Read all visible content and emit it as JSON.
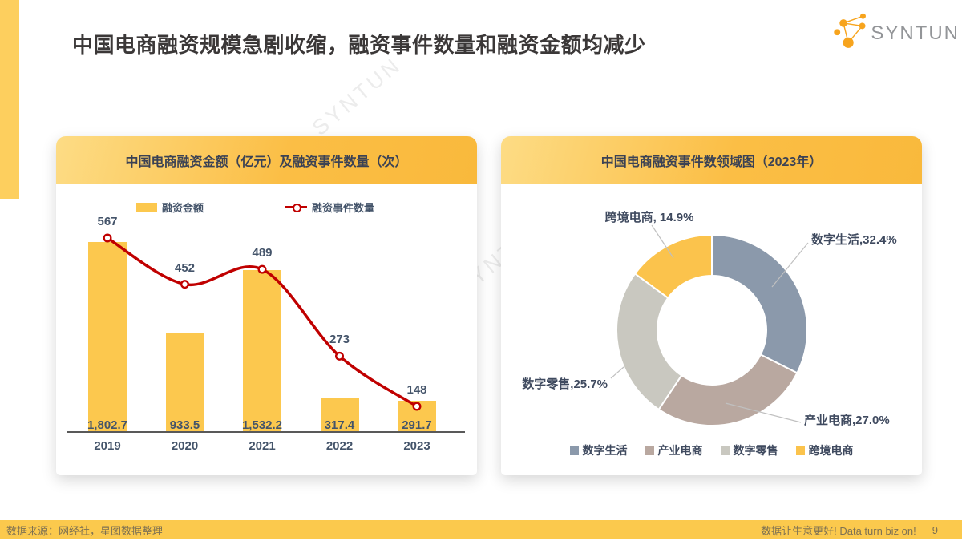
{
  "slide": {
    "title": "中国电商融资规模急剧收缩，融资事件数量和融资金额均减少",
    "watermark": "SYNTUN",
    "logo_text": "SYNTUN",
    "footer": {
      "source": "数据来源：网经社，星图数据整理",
      "slogan": "数据让生意更好! Data turn biz on!",
      "page": "9"
    }
  },
  "colors": {
    "bar_yellow": "#FCC84E",
    "line_red": "#C00000",
    "label_navy": "#44546A",
    "axis_gray": "#595959",
    "accent_yellow": "#FDCF5E",
    "footer_yellow": "#FBC94D",
    "logo_orange": "#F7A41D",
    "leader_gray": "#C0C0C0"
  },
  "chart_data": [
    {
      "type": "combo",
      "title": "中国电商融资金额（亿元）及融资事件数量（次）",
      "categories": [
        "2019",
        "2020",
        "2021",
        "2022",
        "2023"
      ],
      "series": [
        {
          "name": "融资金额",
          "chart": "bar",
          "unit": "亿元",
          "values": [
            1802.7,
            933.5,
            1532.2,
            317.4,
            291.7
          ],
          "value_labels": [
            "1,802.7",
            "933.5",
            "1,532.2",
            "317.4",
            "291.7"
          ],
          "color": "#FCC84E"
        },
        {
          "name": "融资事件数量",
          "chart": "line",
          "unit": "次",
          "values": [
            567,
            452,
            489,
            273,
            148
          ],
          "value_labels": [
            "567",
            "452",
            "489",
            "273",
            "148"
          ],
          "color": "#C00000"
        }
      ],
      "legend_position": "top",
      "grid": false
    },
    {
      "type": "pie",
      "title": "中国电商融资事件数领域图（2023年）",
      "donut": true,
      "slices": [
        {
          "label": "数字生活",
          "value": 32.4,
          "callout": "数字生活,32.4%",
          "color": "#8B99AB"
        },
        {
          "label": "产业电商",
          "value": 27.0,
          "callout": "产业电商,27.0%",
          "color": "#B9A8A0"
        },
        {
          "label": "数字零售",
          "value": 25.7,
          "callout": "数字零售,25.7%",
          "color": "#C9C8C0"
        },
        {
          "label": "跨境电商",
          "value": 14.9,
          "callout": "跨境电商, 14.9%",
          "color": "#FBC34C"
        }
      ],
      "legend_position": "bottom"
    }
  ]
}
